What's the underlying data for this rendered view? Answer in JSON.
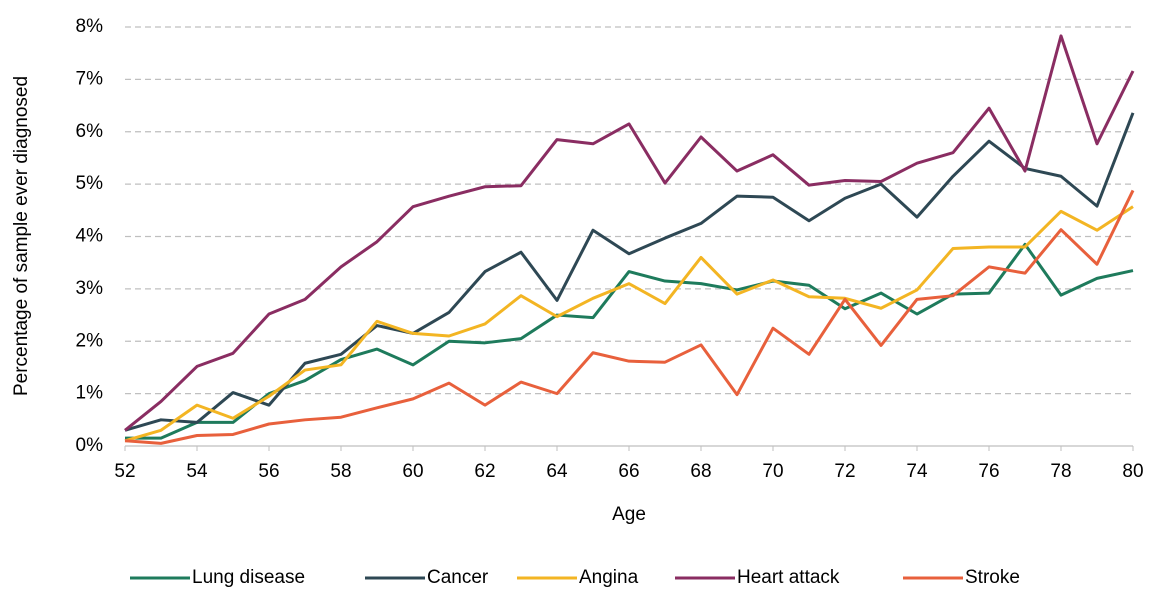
{
  "chart_data": {
    "type": "line",
    "x_label": "Age",
    "y_label": "Percentage of sample ever diagnosed",
    "x": [
      52,
      53,
      54,
      55,
      56,
      57,
      58,
      59,
      60,
      61,
      62,
      63,
      64,
      65,
      66,
      67,
      68,
      69,
      70,
      71,
      72,
      73,
      74,
      75,
      76,
      77,
      78,
      79,
      80
    ],
    "xlim": [
      52,
      80
    ],
    "xticks": [
      52,
      54,
      56,
      58,
      60,
      62,
      64,
      66,
      68,
      70,
      72,
      74,
      76,
      78,
      80
    ],
    "ylim": [
      0,
      8
    ],
    "yticks": [
      {
        "value": 0,
        "label": "0%"
      },
      {
        "value": 1,
        "label": "1%"
      },
      {
        "value": 2,
        "label": "2%"
      },
      {
        "value": 3,
        "label": "3%"
      },
      {
        "value": 4,
        "label": "4%"
      },
      {
        "value": 5,
        "label": "5%"
      },
      {
        "value": 6,
        "label": "6%"
      },
      {
        "value": 7,
        "label": "7%"
      },
      {
        "value": 8,
        "label": "8%"
      }
    ],
    "grid": true,
    "legend": "bottom",
    "series": [
      {
        "name": "Lung disease",
        "color": "#1e7b5c",
        "values": [
          0.15,
          0.15,
          0.45,
          0.45,
          1.0,
          1.25,
          1.65,
          1.85,
          1.55,
          2.0,
          1.97,
          2.05,
          2.5,
          2.45,
          3.33,
          3.15,
          3.1,
          2.98,
          3.15,
          3.07,
          2.62,
          2.92,
          2.52,
          2.9,
          2.92,
          3.85,
          2.88,
          3.2,
          3.35
        ]
      },
      {
        "name": "Cancer",
        "color": "#2e4854",
        "values": [
          0.3,
          0.5,
          0.45,
          1.02,
          0.78,
          1.58,
          1.75,
          2.3,
          2.15,
          2.55,
          3.33,
          3.7,
          2.78,
          4.12,
          3.67,
          3.97,
          4.25,
          4.77,
          4.75,
          4.3,
          4.73,
          5.0,
          4.37,
          5.15,
          5.82,
          5.3,
          5.15,
          4.58,
          6.36
        ]
      },
      {
        "name": "Angina",
        "color": "#f3b523",
        "values": [
          0.1,
          0.3,
          0.78,
          0.53,
          0.95,
          1.45,
          1.55,
          2.38,
          2.15,
          2.1,
          2.33,
          2.87,
          2.47,
          2.82,
          3.1,
          2.72,
          3.6,
          2.9,
          3.17,
          2.85,
          2.82,
          2.63,
          2.98,
          3.77,
          3.8,
          3.8,
          4.48,
          4.12,
          4.57
        ]
      },
      {
        "name": "Heart attack",
        "color": "#8a2d62",
        "values": [
          0.3,
          0.85,
          1.52,
          1.77,
          2.52,
          2.8,
          3.42,
          3.9,
          4.57,
          4.77,
          4.95,
          4.97,
          5.85,
          5.77,
          6.15,
          5.02,
          5.9,
          5.25,
          5.56,
          4.98,
          5.07,
          5.05,
          5.4,
          5.6,
          6.45,
          5.25,
          7.83,
          5.77,
          7.16
        ]
      },
      {
        "name": "Stroke",
        "color": "#e8603c",
        "values": [
          0.1,
          0.05,
          0.2,
          0.22,
          0.42,
          0.5,
          0.55,
          0.73,
          0.9,
          1.2,
          0.78,
          1.22,
          1.0,
          1.78,
          1.62,
          1.6,
          1.93,
          0.98,
          2.25,
          1.75,
          2.8,
          1.92,
          2.8,
          2.87,
          3.42,
          3.3,
          4.13,
          3.47,
          4.88
        ]
      }
    ]
  }
}
